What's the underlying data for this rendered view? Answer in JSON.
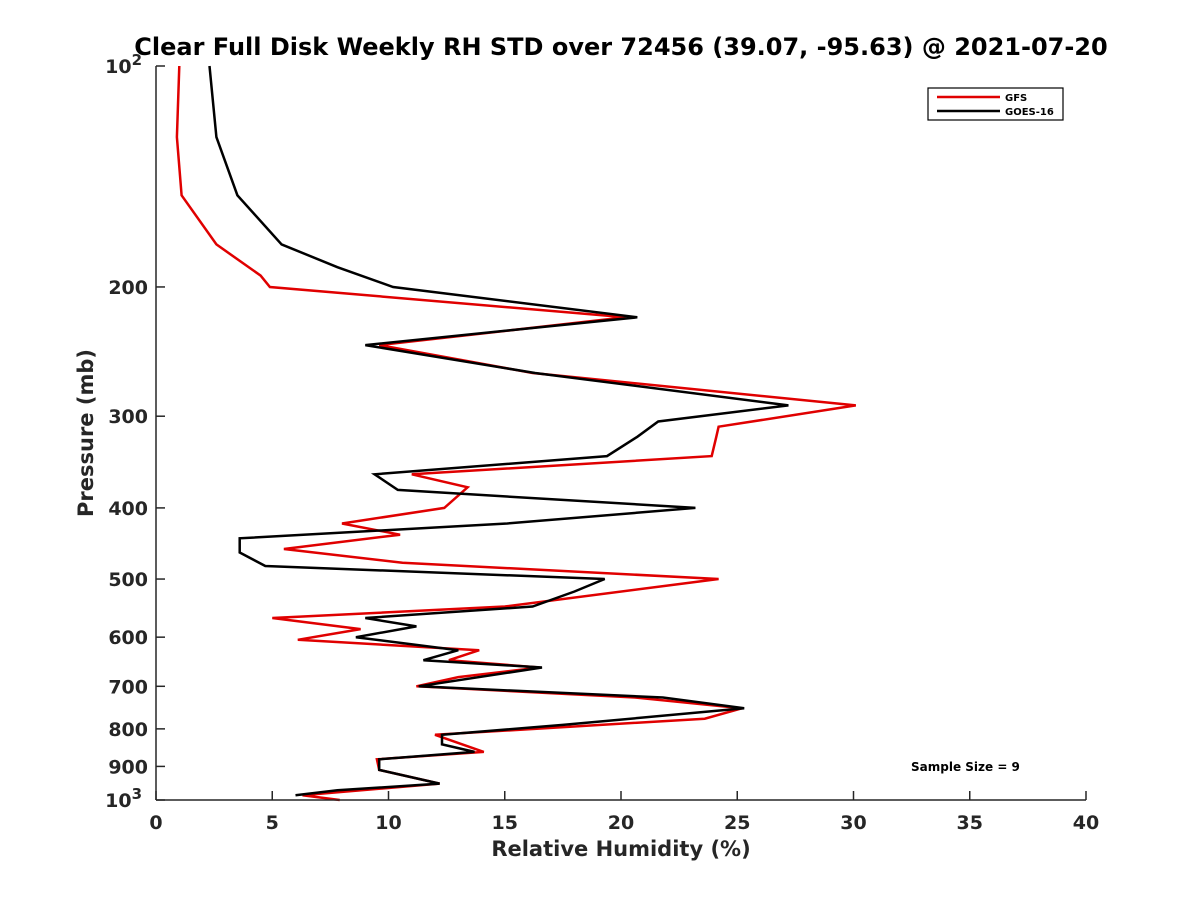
{
  "chart_data": {
    "type": "line",
    "title": "Clear Full Disk Weekly RH STD over 72456 (39.07, -95.63) @ 2021-07-20",
    "xlabel": "Relative Humidity (%)",
    "ylabel": "Pressure (mb)",
    "xlim": [
      0,
      40
    ],
    "ylim": [
      100,
      1000
    ],
    "yscale": "log",
    "yreversed": true,
    "x_ticks": [
      0,
      5,
      10,
      15,
      20,
      25,
      30,
      35,
      40
    ],
    "y_ticks": [
      {
        "value": 100,
        "base": "10",
        "exp": "2"
      },
      {
        "value": 200,
        "label": "200"
      },
      {
        "value": 300,
        "label": "300"
      },
      {
        "value": 400,
        "label": "400"
      },
      {
        "value": 500,
        "label": "500"
      },
      {
        "value": 600,
        "label": "600"
      },
      {
        "value": 700,
        "label": "700"
      },
      {
        "value": 800,
        "label": "800"
      },
      {
        "value": 900,
        "label": "900"
      },
      {
        "value": 1000,
        "base": "10",
        "exp": "3"
      }
    ],
    "legend": {
      "location": "top-right"
    },
    "annotation": "Sample Size = 9",
    "series": [
      {
        "name": "GFS",
        "color": "#e00000",
        "points": [
          [
            1.0,
            100
          ],
          [
            0.9,
            125
          ],
          [
            1.1,
            150
          ],
          [
            2.6,
            175
          ],
          [
            4.5,
            193
          ],
          [
            4.9,
            200
          ],
          [
            20.2,
            220
          ],
          [
            9.6,
            240
          ],
          [
            16.2,
            262
          ],
          [
            30.1,
            290
          ],
          [
            24.2,
            310
          ],
          [
            24.1,
            320
          ],
          [
            23.9,
            340
          ],
          [
            11.0,
            360
          ],
          [
            13.4,
            375
          ],
          [
            12.4,
            400
          ],
          [
            8.0,
            420
          ],
          [
            10.5,
            435
          ],
          [
            5.5,
            455
          ],
          [
            10.6,
            475
          ],
          [
            24.2,
            500
          ],
          [
            15.0,
            545
          ],
          [
            5.0,
            565
          ],
          [
            8.8,
            585
          ],
          [
            6.1,
            605
          ],
          [
            13.9,
            625
          ],
          [
            12.6,
            645
          ],
          [
            16.5,
            660
          ],
          [
            13.0,
            680
          ],
          [
            11.2,
            700
          ],
          [
            20.6,
            725
          ],
          [
            25.2,
            750
          ],
          [
            23.6,
            775
          ],
          [
            12.0,
            815
          ],
          [
            14.1,
            860
          ],
          [
            9.5,
            880
          ],
          [
            9.6,
            910
          ],
          [
            12.2,
            950
          ],
          [
            6.3,
            985
          ],
          [
            7.9,
            1000
          ]
        ]
      },
      {
        "name": "GOES-16",
        "color": "#000000",
        "points": [
          [
            2.3,
            100
          ],
          [
            2.6,
            125
          ],
          [
            3.5,
            150
          ],
          [
            5.4,
            175
          ],
          [
            7.8,
            188
          ],
          [
            10.2,
            200
          ],
          [
            20.7,
            220
          ],
          [
            9.0,
            240
          ],
          [
            16.3,
            262
          ],
          [
            27.2,
            290
          ],
          [
            21.6,
            305
          ],
          [
            20.7,
            320
          ],
          [
            19.4,
            340
          ],
          [
            9.4,
            360
          ],
          [
            10.4,
            378
          ],
          [
            23.2,
            400
          ],
          [
            15.1,
            420
          ],
          [
            3.6,
            440
          ],
          [
            3.6,
            460
          ],
          [
            4.7,
            480
          ],
          [
            19.3,
            500
          ],
          [
            18.0,
            520
          ],
          [
            16.2,
            545
          ],
          [
            9.0,
            565
          ],
          [
            11.2,
            580
          ],
          [
            8.6,
            600
          ],
          [
            13.0,
            625
          ],
          [
            11.5,
            645
          ],
          [
            16.6,
            660
          ],
          [
            11.3,
            700
          ],
          [
            21.8,
            725
          ],
          [
            25.3,
            750
          ],
          [
            17.5,
            790
          ],
          [
            12.3,
            815
          ],
          [
            12.3,
            840
          ],
          [
            13.7,
            860
          ],
          [
            9.6,
            880
          ],
          [
            9.6,
            910
          ],
          [
            12.2,
            950
          ],
          [
            7.8,
            970
          ],
          [
            6.0,
            985
          ]
        ]
      }
    ]
  }
}
